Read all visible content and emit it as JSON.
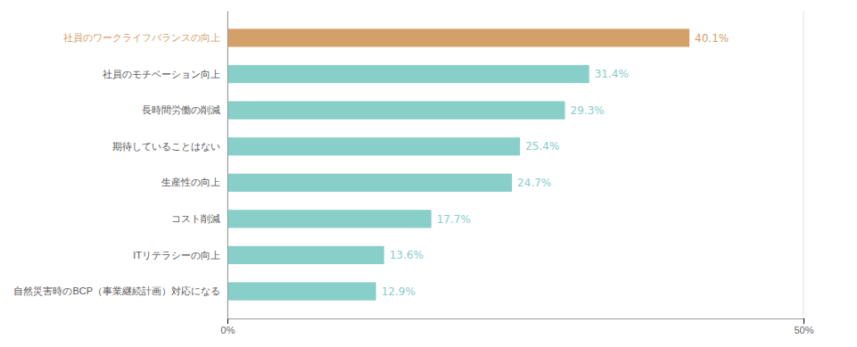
{
  "chart_data": {
    "type": "bar",
    "orientation": "horizontal",
    "categories": [
      "自然災害時のBCP（事業継続計画）対応になる",
      "ITリテラシーの向上",
      "コスト削減",
      "生産性の向上",
      "期待していることはない",
      "長時間労働の削減",
      "社員のモチベーション向上",
      "社員のワークライフバランスの向上"
    ],
    "values": [
      12.9,
      13.6,
      17.7,
      24.7,
      25.4,
      29.3,
      31.4,
      40.1
    ],
    "value_labels": [
      "12.9%",
      "13.6%",
      "17.7%",
      "24.7%",
      "25.4%",
      "29.3%",
      "31.4%",
      "40.1%"
    ],
    "colors": [
      "#88cec9",
      "#88cec9",
      "#88cec9",
      "#88cec9",
      "#88cec9",
      "#88cec9",
      "#88cec9",
      "#d4a06a"
    ],
    "xlim": [
      0,
      50
    ],
    "xticks": [
      {
        "value": 0,
        "label": "0%"
      },
      {
        "value": 50,
        "label": "50%"
      }
    ],
    "grid": true,
    "data_labels": true
  }
}
